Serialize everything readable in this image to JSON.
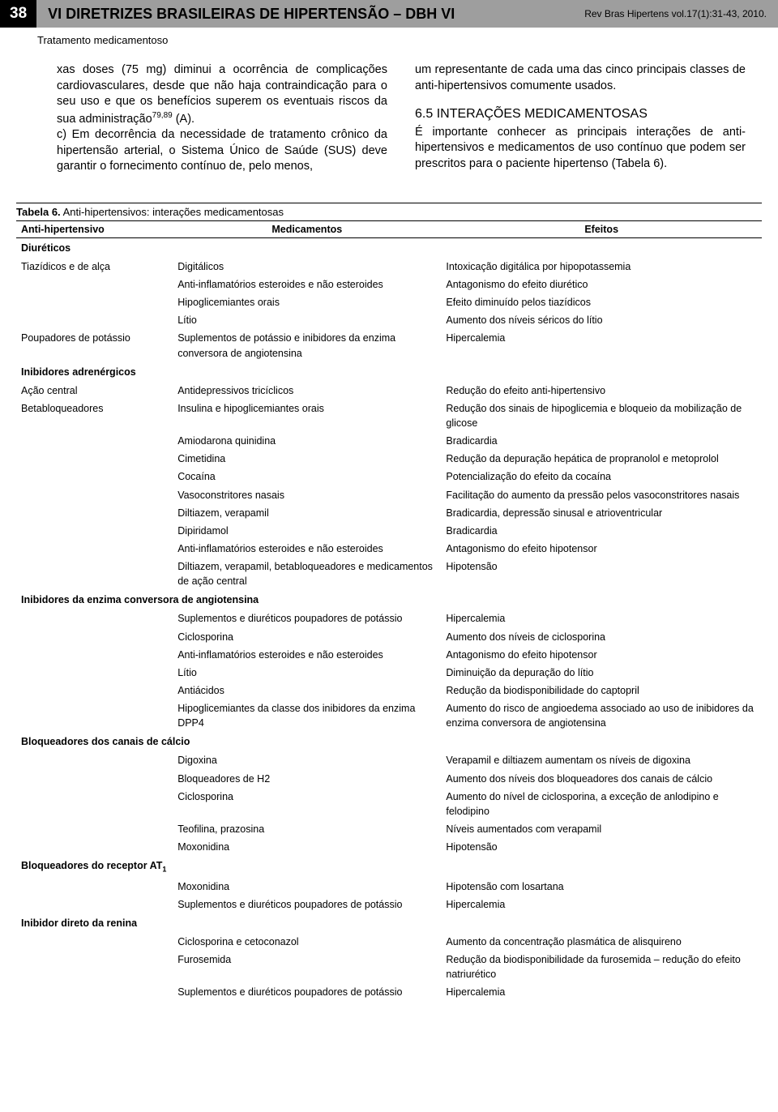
{
  "header": {
    "page_number": "38",
    "title": "VI DIRETRIZES BRASILEIRAS DE HIPERTENSÃO – DBH VI",
    "journal": "Rev Bras Hipertens vol.17(1):31-43, 2010.",
    "subtitle": "Tratamento medicamentoso"
  },
  "body": {
    "left_p1": "xas doses (75 mg) diminui a ocorrência de complicações cardiovasculares, desde que não haja contraindicação para o seu uso e que os benefícios superem os eventuais riscos da sua administração",
    "left_sup": "79,89",
    "left_p1_tail": " (A).",
    "left_p2": "c) Em decorrência da necessidade de tratamento crônico da hipertensão arterial, o Sistema Único de Saúde (SUS) deve garantir o fornecimento contínuo de, pelo menos,",
    "right_p1": "um representante de cada uma das cinco principais classes de anti-hipertensivos comumente usados.",
    "section_heading": "6.5 INTERAÇÕES MEDICAMENTOSAS",
    "right_p2": "É importante conhecer as principais interações de anti-hipertensivos e medicamentos de uso contínuo que podem ser prescritos para o paciente hipertenso (Tabela 6)."
  },
  "table": {
    "caption_bold": "Tabela 6.",
    "caption_rest": " Anti-hipertensivos: interações medicamentosas",
    "headers": {
      "c1": "Anti-hipertensivo",
      "c2": "Medicamentos",
      "c3": "Efeitos"
    },
    "groups": [
      {
        "label": "Diuréticos",
        "rows": [
          {
            "c1": "Tiazídicos e de alça",
            "c2": "Digitálicos",
            "c3": "Intoxicação digitálica por hipopotassemia"
          },
          {
            "c1": "",
            "c2": "Anti-inflamatórios esteroides e não esteroides",
            "c3": "Antagonismo do efeito diurético"
          },
          {
            "c1": "",
            "c2": "Hipoglicemiantes orais",
            "c3": "Efeito diminuído pelos tiazídicos"
          },
          {
            "c1": "",
            "c2": "Lítio",
            "c3": "Aumento dos níveis séricos do lítio"
          },
          {
            "c1": "Poupadores de potássio",
            "c2": "Suplementos de potássio e inibidores da enzima conversora de angiotensina",
            "c3": "Hipercalemia"
          }
        ]
      },
      {
        "label": "Inibidores adrenérgicos",
        "rows": [
          {
            "c1": "Ação central",
            "c2": "Antidepressivos tricíclicos",
            "c3": "Redução do efeito anti-hipertensivo"
          },
          {
            "c1": "Betabloqueadores",
            "c2": "Insulina e hipoglicemiantes orais",
            "c3": "Redução dos sinais de hipoglicemia e bloqueio da mobilização de glicose"
          },
          {
            "c1": "",
            "c2": "Amiodarona quinidina",
            "c3": "Bradicardia"
          },
          {
            "c1": "",
            "c2": "Cimetidina",
            "c3": "Redução da depuração hepática de propranolol e metoprolol"
          },
          {
            "c1": "",
            "c2": "Cocaína",
            "c3": "Potencialização do efeito da cocaína"
          },
          {
            "c1": "",
            "c2": "Vasoconstritores nasais",
            "c3": "Facilitação do aumento da pressão pelos vasoconstritores nasais"
          },
          {
            "c1": "",
            "c2": "Diltiazem, verapamil",
            "c3": "Bradicardia, depressão sinusal e atrioventricular"
          },
          {
            "c1": "",
            "c2": "Dipiridamol",
            "c3": "Bradicardia"
          },
          {
            "c1": "",
            "c2": "Anti-inflamatórios esteroides e não esteroides",
            "c3": "Antagonismo do efeito hipotensor"
          },
          {
            "c1": "",
            "c2": "Diltiazem, verapamil, betabloqueadores e medicamentos de ação central",
            "c3": "Hipotensão"
          }
        ]
      },
      {
        "label": "Inibidores da enzima conversora de angiotensina",
        "rows": [
          {
            "c1": "",
            "c2": "Suplementos e diuréticos poupadores de potássio",
            "c3": "Hipercalemia"
          },
          {
            "c1": "",
            "c2": "Ciclosporina",
            "c3": "Aumento dos níveis de ciclosporina"
          },
          {
            "c1": "",
            "c2": "Anti-inflamatórios esteroides e não esteroides",
            "c3": "Antagonismo do efeito hipotensor"
          },
          {
            "c1": "",
            "c2": "Lítio",
            "c3": "Diminuição da depuração do lítio"
          },
          {
            "c1": "",
            "c2": "Antiácidos",
            "c3": "Redução da biodisponibilidade do captopril"
          },
          {
            "c1": "",
            "c2": "Hipoglicemiantes da classe dos inibidores da enzima DPP4",
            "c3": "Aumento do risco de angioedema associado ao uso de inibidores da enzima conversora de angiotensina"
          }
        ]
      },
      {
        "label": "Bloqueadores dos canais de cálcio",
        "rows": [
          {
            "c1": "",
            "c2": "Digoxina",
            "c3": "Verapamil e diltiazem aumentam os níveis de digoxina"
          },
          {
            "c1": "",
            "c2": "Bloqueadores de H2",
            "c3": "Aumento dos níveis dos bloqueadores dos canais de cálcio"
          },
          {
            "c1": "",
            "c2": "Ciclosporina",
            "c3": "Aumento do nível de ciclosporina, a exceção de anlodipino e felodipino"
          },
          {
            "c1": "",
            "c2": "Teofilina, prazosina",
            "c3": "Níveis aumentados com verapamil"
          },
          {
            "c1": "",
            "c2": "Moxonidina",
            "c3": "Hipotensão"
          }
        ]
      },
      {
        "label": "Bloqueadores do receptor AT",
        "label_sub": "1",
        "rows": [
          {
            "c1": "",
            "c2": "Moxonidina",
            "c3": "Hipotensão com losartana"
          },
          {
            "c1": "",
            "c2": "Suplementos e diuréticos poupadores de potássio",
            "c3": "Hipercalemia"
          }
        ]
      },
      {
        "label": "Inibidor direto da renina",
        "rows": [
          {
            "c1": "",
            "c2": "Ciclosporina e cetoconazol",
            "c3": "Aumento da concentração plasmática de alisquireno"
          },
          {
            "c1": "",
            "c2": "Furosemida",
            "c3": "Redução da biodisponibilidade da furosemida – redução do efeito natriurético"
          },
          {
            "c1": "",
            "c2": "Suplementos e diuréticos poupadores de potássio",
            "c3": "Hipercalemia"
          }
        ]
      }
    ]
  }
}
